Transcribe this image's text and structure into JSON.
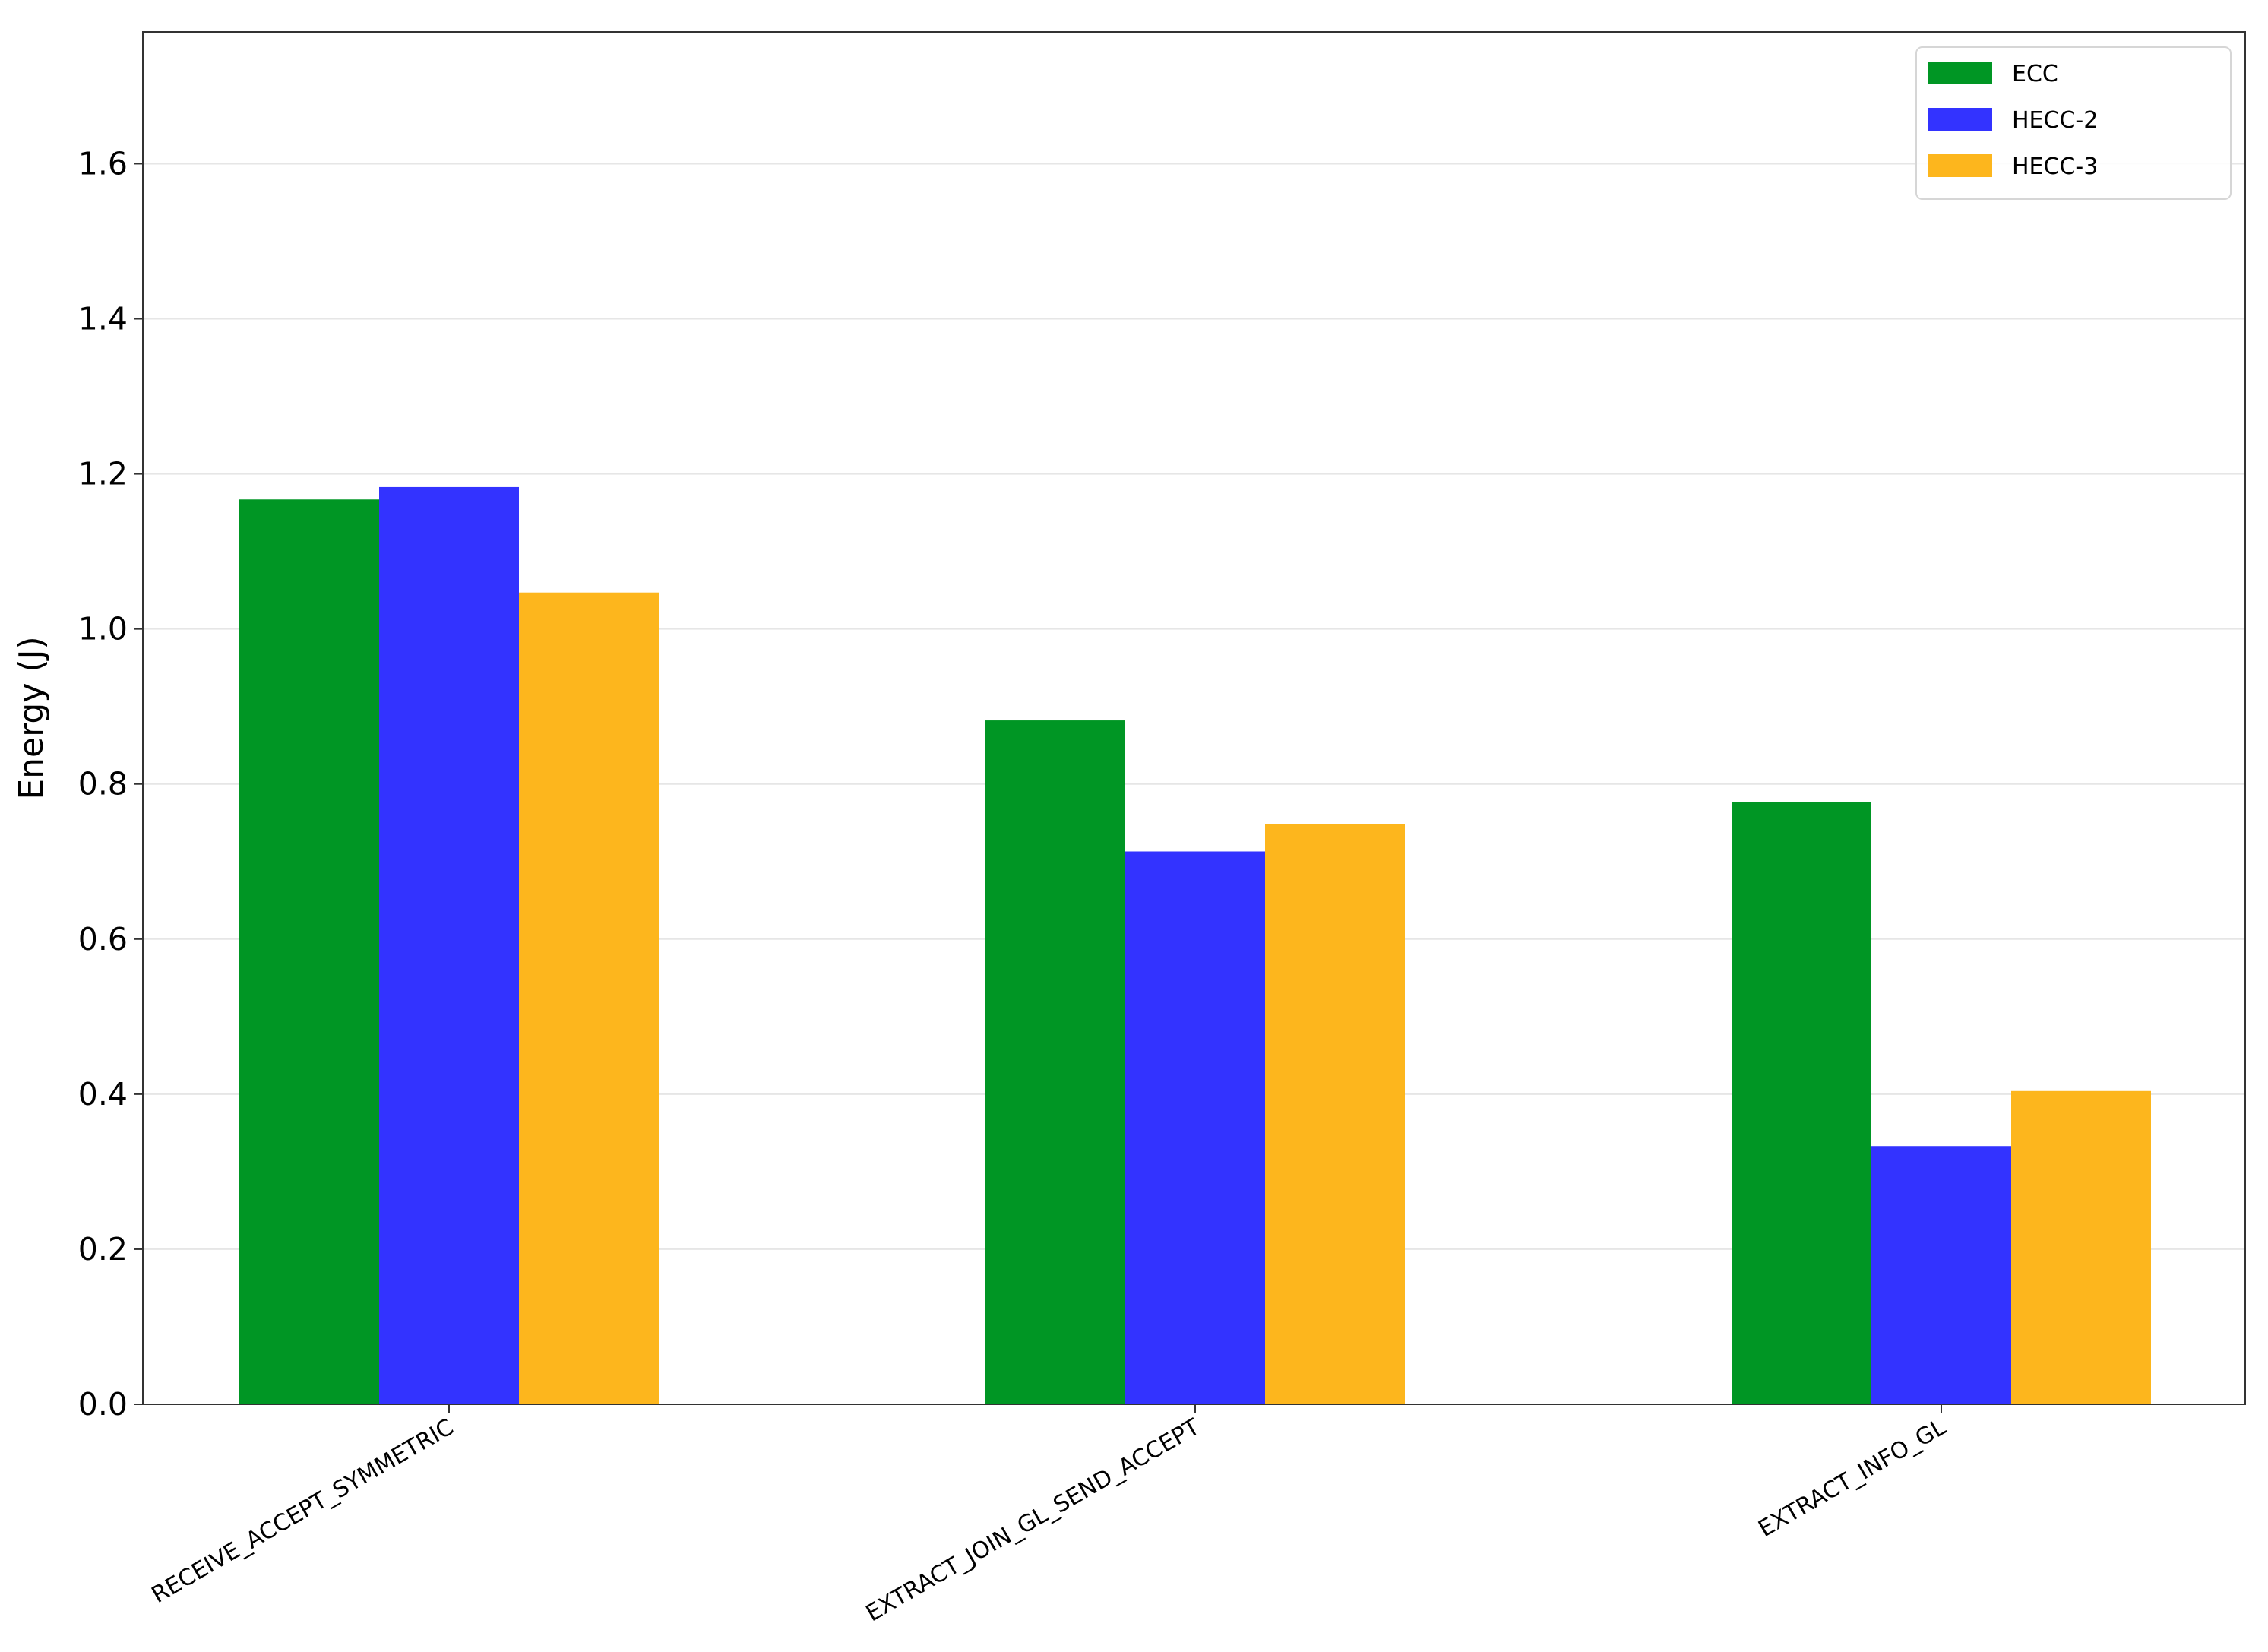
{
  "chart_data": {
    "type": "bar",
    "title": "",
    "xlabel": "",
    "ylabel": "Energy (J)",
    "ylim": [
      0,
      1.77
    ],
    "yticks": [
      "0.0",
      "0.2",
      "0.4",
      "0.6",
      "0.8",
      "1.0",
      "1.2",
      "1.4",
      "1.6"
    ],
    "grid": "horizontal",
    "legend_position": "top-right",
    "categories": [
      "RECEIVE_ACCEPT_SYMMETRIC",
      "EXTRACT_JOIN_GL_SEND_ACCEPT",
      "EXTRACT_INFO_GL"
    ],
    "series": [
      {
        "name": "ECC",
        "color": "#009624",
        "values": [
          1.167,
          0.882,
          0.777
        ]
      },
      {
        "name": "HECC-2",
        "color": "#3333ff",
        "values": [
          1.183,
          0.713,
          0.333
        ]
      },
      {
        "name": "HECC-3",
        "color": "#fdb61d",
        "values": [
          1.047,
          0.748,
          0.404
        ]
      }
    ]
  }
}
